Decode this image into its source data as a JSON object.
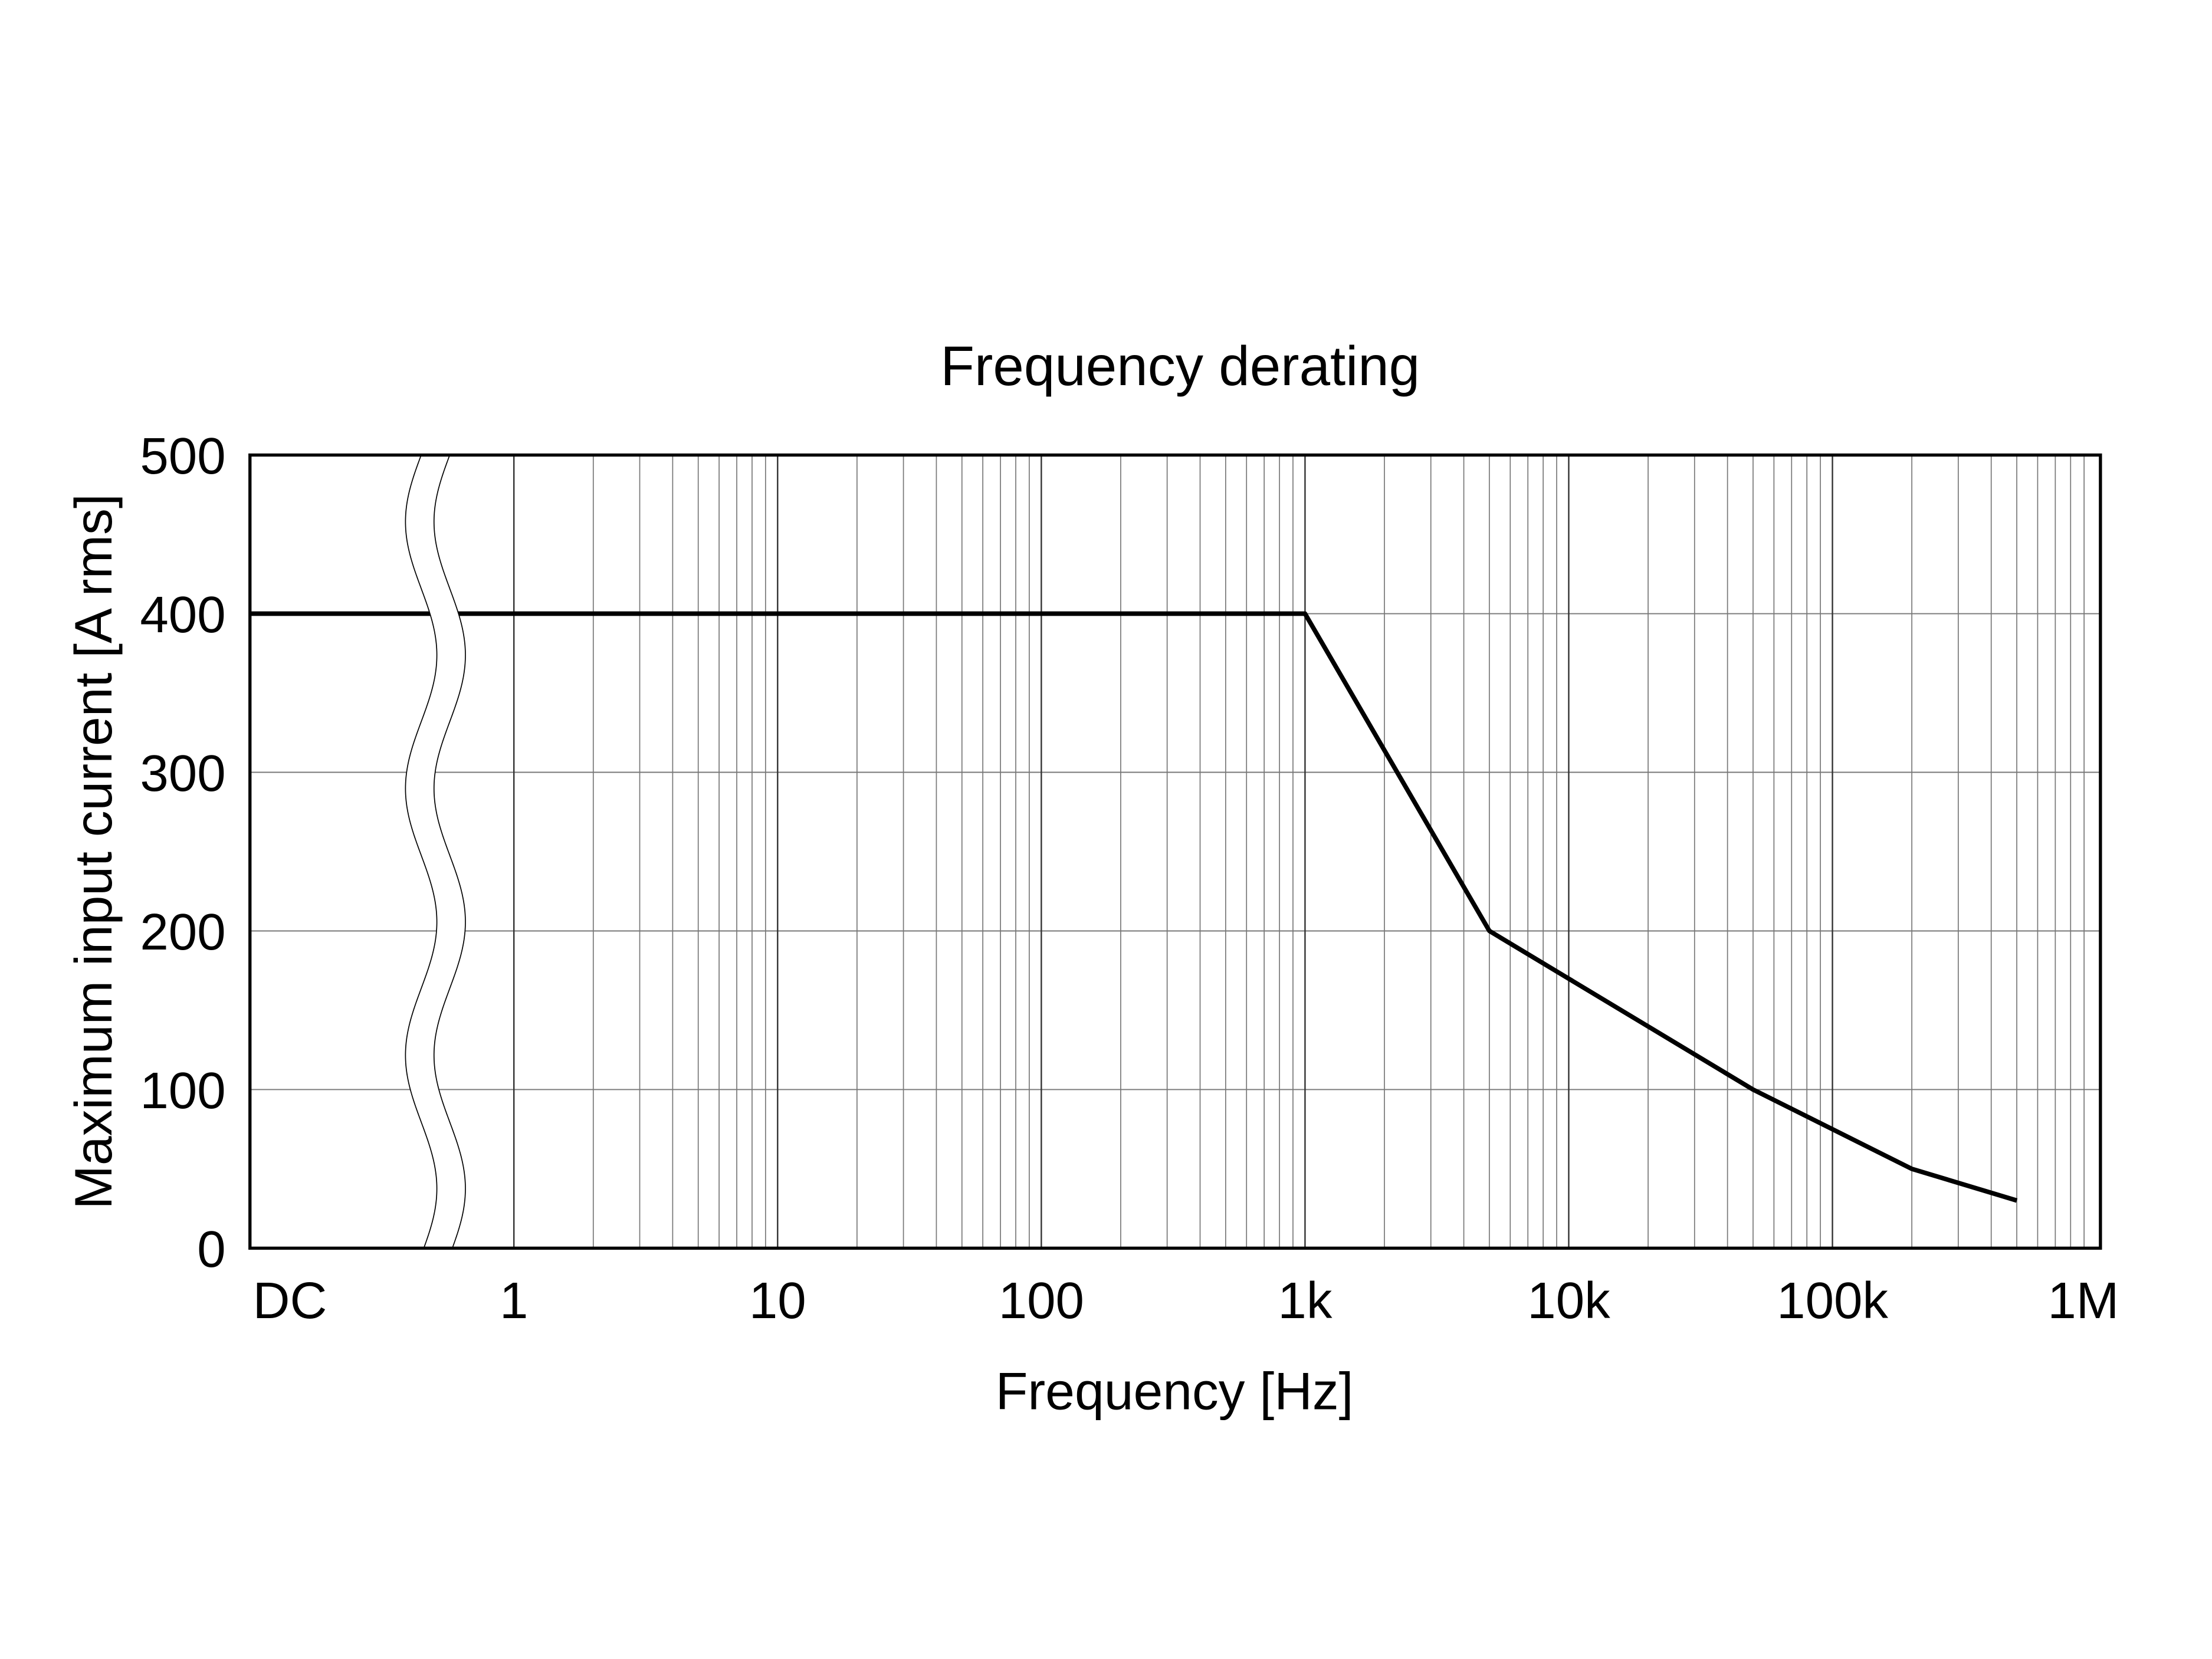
{
  "chart_data": {
    "type": "line",
    "title": "Frequency derating",
    "xlabel": "Frequency [Hz]",
    "ylabel": "Maximum input current [A rms]",
    "x_scale": "log with DC break",
    "x_tick_labels": [
      "DC",
      "1",
      "10",
      "100",
      "1k",
      "10k",
      "100k",
      "1M"
    ],
    "x_tick_values": [
      "DC",
      1,
      10,
      100,
      1000,
      10000,
      100000,
      1000000
    ],
    "xlim": [
      1,
      1000000
    ],
    "y_tick_labels": [
      "0",
      "100",
      "200",
      "300",
      "400",
      "500"
    ],
    "y_tick_values": [
      0,
      100,
      200,
      300,
      400,
      500
    ],
    "ylim": [
      0,
      500
    ],
    "grid": true,
    "axis_break": "wavy break between DC and 1 Hz",
    "series": [
      {
        "color": "#000000",
        "points": [
          {
            "x": "DC",
            "y": 400
          },
          {
            "x": 1000,
            "y": 400
          },
          {
            "x": 5000,
            "y": 200
          },
          {
            "x": 50000,
            "y": 100
          },
          {
            "x": 200000,
            "y": 50
          },
          {
            "x": 500000,
            "y": 30
          }
        ]
      }
    ]
  }
}
